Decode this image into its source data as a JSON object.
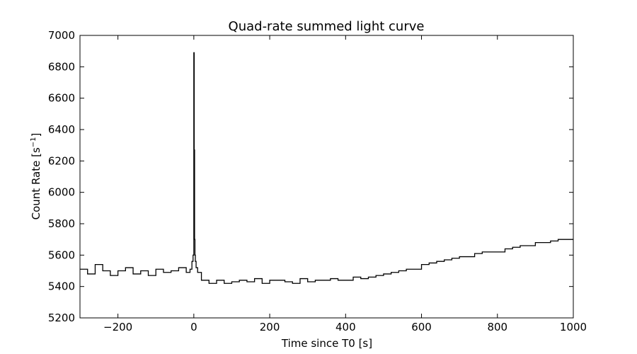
{
  "chart_data": {
    "type": "line",
    "title": "Quad-rate summed light curve",
    "xlabel": "Time since T0 [s]",
    "ylabel": "Count Rate [s",
    "ylabel_sup": "−1",
    "ylabel_end": "]",
    "xlim": [
      -300,
      1000
    ],
    "ylim": [
      5200,
      7000
    ],
    "xticks": [
      -200,
      0,
      200,
      400,
      600,
      800,
      1000
    ],
    "xtick_labels": [
      "−200",
      "0",
      "200",
      "400",
      "600",
      "800",
      "1000"
    ],
    "yticks": [
      5200,
      5400,
      5600,
      5800,
      6000,
      6200,
      6400,
      6600,
      6800,
      7000
    ],
    "ytick_labels": [
      "5200",
      "5400",
      "5600",
      "5800",
      "6000",
      "6200",
      "6400",
      "6600",
      "6800",
      "7000"
    ],
    "grid": false,
    "line_color": "#000000",
    "series": [
      {
        "x": [
          -300,
          -280,
          -260,
          -240,
          -220,
          -200,
          -180,
          -160,
          -140,
          -120,
          -100,
          -80,
          -60,
          -40,
          -20,
          -10,
          -5,
          -2,
          0,
          1,
          2,
          3,
          4,
          6,
          10,
          20,
          40,
          60,
          80,
          100,
          120,
          140,
          160,
          180,
          200,
          220,
          240,
          260,
          280,
          300,
          320,
          340,
          360,
          380,
          400,
          420,
          440,
          460,
          480,
          500,
          520,
          540,
          560,
          580,
          600,
          620,
          640,
          660,
          680,
          700,
          720,
          740,
          760,
          780,
          800,
          820,
          840,
          860,
          880,
          900,
          920,
          940,
          960,
          980,
          1000
        ],
        "y": [
          5510,
          5480,
          5540,
          5500,
          5470,
          5500,
          5520,
          5480,
          5500,
          5470,
          5510,
          5490,
          5500,
          5520,
          5490,
          5510,
          5560,
          5600,
          6890,
          6270,
          5700,
          5600,
          5560,
          5520,
          5490,
          5440,
          5420,
          5440,
          5420,
          5430,
          5440,
          5430,
          5450,
          5420,
          5440,
          5440,
          5430,
          5420,
          5450,
          5430,
          5440,
          5440,
          5450,
          5440,
          5440,
          5460,
          5450,
          5460,
          5470,
          5480,
          5490,
          5500,
          5510,
          5510,
          5540,
          5550,
          5560,
          5570,
          5580,
          5590,
          5590,
          5610,
          5620,
          5620,
          5620,
          5640,
          5650,
          5660,
          5660,
          5680,
          5680,
          5690,
          5700,
          5700,
          5700
        ]
      }
    ]
  }
}
